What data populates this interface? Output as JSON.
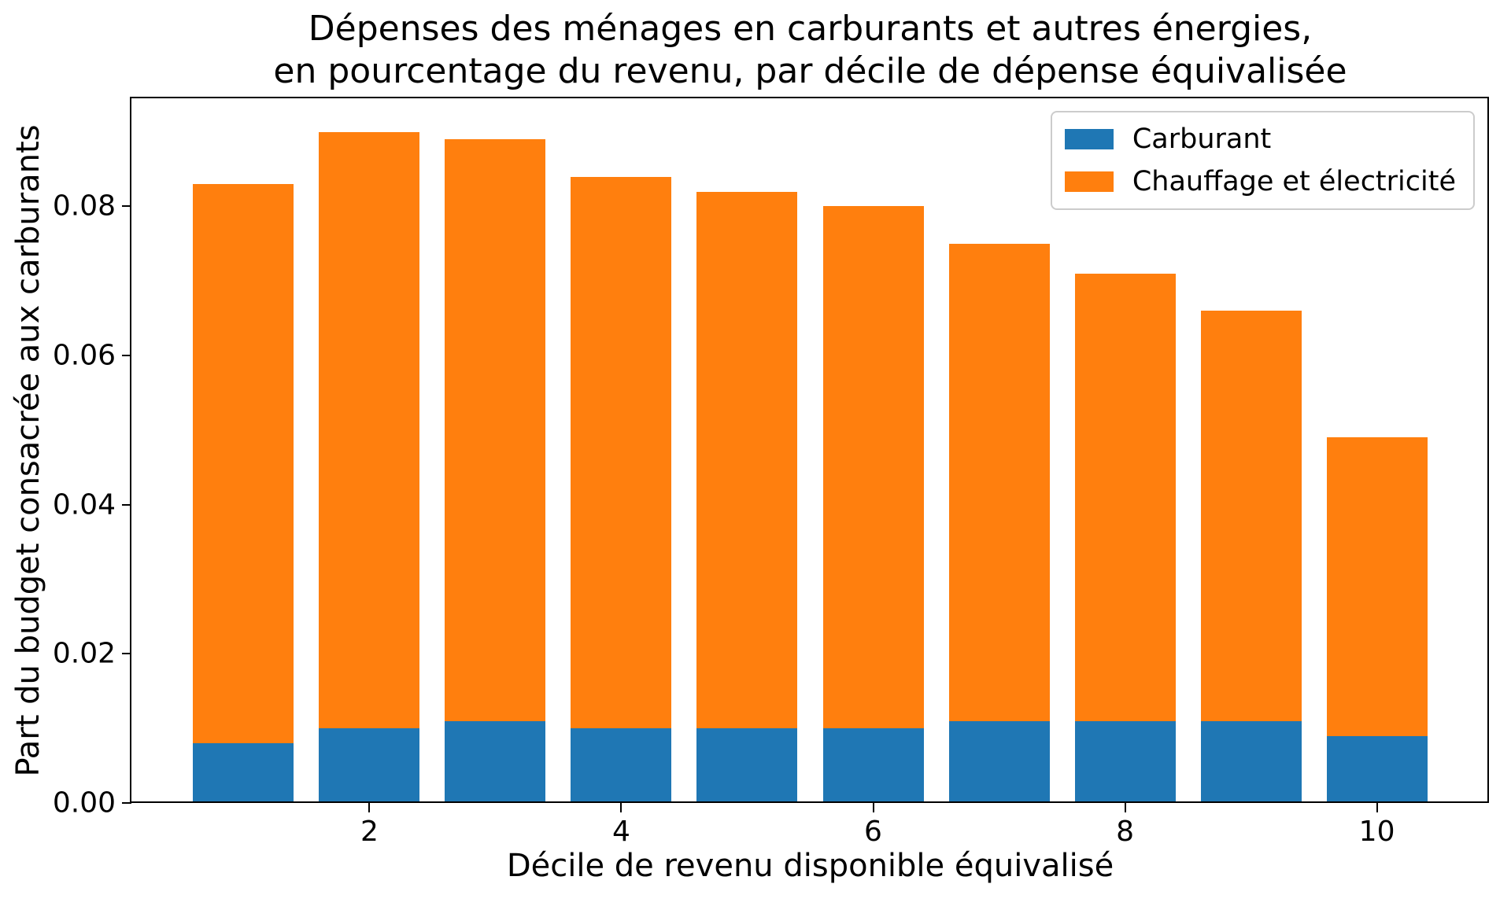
{
  "figure": {
    "title_line1": "Dépenses des ménages en carburants et autres énergies,",
    "title_line2": "en pourcentage du revenu, par décile de dépense équivalisée",
    "xlabel": "Décile de revenu disponible équivalisé",
    "ylabel": "Part du budget consacrée aux carburants"
  },
  "legend": {
    "items": [
      {
        "label": "Carburant",
        "color": "#1f77b4"
      },
      {
        "label": "Chauffage et électricité",
        "color": "#ff7f0e"
      }
    ]
  },
  "chart_data": {
    "type": "bar",
    "stacked": true,
    "title": "Dépenses des ménages en carburants et autres énergies,\nen pourcentage du revenu, par décile de dépense équivalisée",
    "xlabel": "Décile de revenu disponible équivalisé",
    "ylabel": "Part du budget consacrée aux carburants",
    "categories": [
      1,
      2,
      3,
      4,
      5,
      6,
      7,
      8,
      9,
      10
    ],
    "series": [
      {
        "name": "Carburant",
        "color": "#1f77b4",
        "values": [
          0.008,
          0.01,
          0.011,
          0.01,
          0.01,
          0.01,
          0.011,
          0.011,
          0.011,
          0.009
        ]
      },
      {
        "name": "Chauffage et électricité",
        "color": "#ff7f0e",
        "values": [
          0.075,
          0.08,
          0.078,
          0.074,
          0.072,
          0.07,
          0.064,
          0.06,
          0.055,
          0.04
        ]
      }
    ],
    "stack_totals": [
      0.083,
      0.09,
      0.089,
      0.084,
      0.082,
      0.08,
      0.075,
      0.071,
      0.066,
      0.049
    ],
    "bar_width": 0.8,
    "xlim": [
      0.11,
      10.89
    ],
    "ylim": [
      0,
      0.0945
    ],
    "xticks": {
      "values": [
        2,
        4,
        6,
        8,
        10
      ],
      "labels": [
        "2",
        "4",
        "6",
        "8",
        "10"
      ]
    },
    "yticks": {
      "values": [
        0,
        0.02,
        0.04,
        0.06,
        0.08
      ],
      "labels": [
        "0.00",
        "0.02",
        "0.04",
        "0.06",
        "0.08"
      ]
    },
    "grid": false,
    "legend_position": "upper right"
  }
}
